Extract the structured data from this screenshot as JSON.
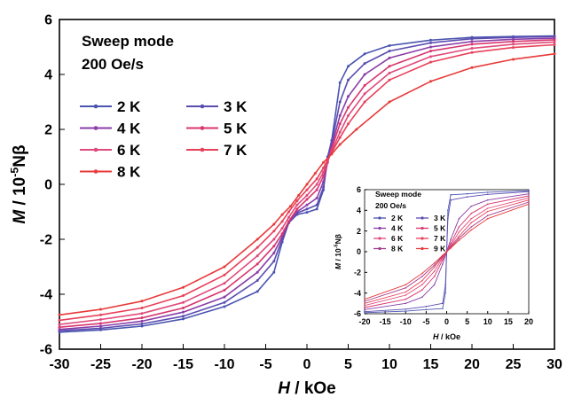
{
  "chart_data": [
    {
      "type": "line",
      "panel": "main",
      "annotation_line1": "Sweep mode",
      "annotation_line2": "200 Oe/s",
      "xlabel_var": "H",
      "xlabel_unit": " / kOe",
      "ylabel_var": "M",
      "ylabel_unit_pre": " / 10",
      "ylabel_exp": "-5",
      "ylabel_unit_post": "Nβ",
      "xlim": [
        -30,
        30
      ],
      "ylim": [
        -6,
        6
      ],
      "xticks": [
        "-30",
        "-25",
        "-20",
        "-15",
        "-10",
        "-5",
        "0",
        "5",
        "10",
        "15",
        "20",
        "25",
        "30"
      ],
      "yticks": [
        "-6",
        "-4",
        "-2",
        "0",
        "2",
        "4",
        "6"
      ],
      "grid": false,
      "legend_position": "upper-left",
      "series": [
        {
          "name": "2 K",
          "color": "#4a55b0",
          "points": [
            [
              -30,
              -5.38
            ],
            [
              -25,
              -5.3
            ],
            [
              -20,
              -5.16
            ],
            [
              -15,
              -4.9
            ],
            [
              -10,
              -4.45
            ],
            [
              -6,
              -3.9
            ],
            [
              -4,
              -3.2
            ],
            [
              -3,
              -2.1
            ],
            [
              -2.2,
              -1.4
            ],
            [
              -1.2,
              -1.1
            ],
            [
              0,
              -1.02
            ],
            [
              1.2,
              -0.9
            ],
            [
              2,
              -0.2
            ],
            [
              2.5,
              1.0
            ],
            [
              3,
              1.6
            ],
            [
              4,
              3.7
            ],
            [
              5,
              4.3
            ],
            [
              7,
              4.75
            ],
            [
              10,
              5.05
            ],
            [
              15,
              5.25
            ],
            [
              20,
              5.35
            ],
            [
              25,
              5.38
            ],
            [
              30,
              5.4
            ]
          ]
        },
        {
          "name": "3 K",
          "color": "#5a4db0",
          "points": [
            [
              -30,
              -5.33
            ],
            [
              -25,
              -5.24
            ],
            [
              -20,
              -5.08
            ],
            [
              -15,
              -4.8
            ],
            [
              -10,
              -4.3
            ],
            [
              -6,
              -3.5
            ],
            [
              -4,
              -2.8
            ],
            [
              -3,
              -2.0
            ],
            [
              -2.2,
              -1.4
            ],
            [
              -1.2,
              -1.05
            ],
            [
              0,
              -0.9
            ],
            [
              1.2,
              -0.75
            ],
            [
              2,
              -0.1
            ],
            [
              2.5,
              0.9
            ],
            [
              3,
              1.5
            ],
            [
              4,
              3.0
            ],
            [
              5,
              3.8
            ],
            [
              7,
              4.4
            ],
            [
              10,
              4.85
            ],
            [
              15,
              5.15
            ],
            [
              20,
              5.3
            ],
            [
              25,
              5.35
            ],
            [
              30,
              5.38
            ]
          ]
        },
        {
          "name": "4 K",
          "color": "#8a3ca8",
          "points": [
            [
              -30,
              -5.28
            ],
            [
              -25,
              -5.16
            ],
            [
              -20,
              -4.98
            ],
            [
              -15,
              -4.65
            ],
            [
              -10,
              -4.1
            ],
            [
              -6,
              -3.2
            ],
            [
              -4,
              -2.5
            ],
            [
              -3,
              -1.9
            ],
            [
              -2.2,
              -1.4
            ],
            [
              -1.2,
              -1.0
            ],
            [
              0,
              -0.75
            ],
            [
              1.2,
              -0.5
            ],
            [
              2,
              0.1
            ],
            [
              2.5,
              0.8
            ],
            [
              3,
              1.4
            ],
            [
              4,
              2.5
            ],
            [
              5,
              3.2
            ],
            [
              7,
              4.0
            ],
            [
              10,
              4.6
            ],
            [
              15,
              5.0
            ],
            [
              20,
              5.2
            ],
            [
              25,
              5.28
            ],
            [
              30,
              5.32
            ]
          ]
        },
        {
          "name": "5 K",
          "color": "#d8356e",
          "points": [
            [
              -30,
              -5.2
            ],
            [
              -25,
              -5.06
            ],
            [
              -20,
              -4.86
            ],
            [
              -15,
              -4.5
            ],
            [
              -10,
              -3.85
            ],
            [
              -6,
              -2.9
            ],
            [
              -4,
              -2.25
            ],
            [
              -3,
              -1.8
            ],
            [
              -2.2,
              -1.35
            ],
            [
              -1.2,
              -0.9
            ],
            [
              0,
              -0.55
            ],
            [
              1.2,
              -0.2
            ],
            [
              2,
              0.3
            ],
            [
              2.5,
              0.8
            ],
            [
              3,
              1.3
            ],
            [
              4,
              2.2
            ],
            [
              5,
              2.8
            ],
            [
              7,
              3.6
            ],
            [
              10,
              4.3
            ],
            [
              15,
              4.85
            ],
            [
              20,
              5.1
            ],
            [
              25,
              5.2
            ],
            [
              30,
              5.26
            ]
          ]
        },
        {
          "name": "6 K",
          "color": "#e04a7a",
          "points": [
            [
              -30,
              -5.1
            ],
            [
              -25,
              -4.92
            ],
            [
              -20,
              -4.7
            ],
            [
              -15,
              -4.3
            ],
            [
              -10,
              -3.6
            ],
            [
              -6,
              -2.6
            ],
            [
              -4,
              -2.0
            ],
            [
              -3,
              -1.6
            ],
            [
              -2.2,
              -1.2
            ],
            [
              -1.2,
              -0.75
            ],
            [
              0,
              -0.4
            ],
            [
              1.2,
              0.0
            ],
            [
              2,
              0.45
            ],
            [
              2.5,
              0.85
            ],
            [
              3,
              1.2
            ],
            [
              4,
              1.9
            ],
            [
              5,
              2.5
            ],
            [
              7,
              3.3
            ],
            [
              10,
              4.05
            ],
            [
              15,
              4.65
            ],
            [
              20,
              4.95
            ],
            [
              25,
              5.1
            ],
            [
              30,
              5.18
            ]
          ]
        },
        {
          "name": "7 K",
          "color": "#e8405a",
          "points": [
            [
              -30,
              -4.95
            ],
            [
              -25,
              -4.75
            ],
            [
              -20,
              -4.5
            ],
            [
              -15,
              -4.05
            ],
            [
              -10,
              -3.3
            ],
            [
              -6,
              -2.3
            ],
            [
              -4,
              -1.7
            ],
            [
              -3,
              -1.35
            ],
            [
              -2.2,
              -1.0
            ],
            [
              -1.2,
              -0.6
            ],
            [
              0,
              -0.2
            ],
            [
              1.2,
              0.2
            ],
            [
              2,
              0.6
            ],
            [
              2.5,
              0.9
            ],
            [
              3,
              1.15
            ],
            [
              4,
              1.7
            ],
            [
              5,
              2.2
            ],
            [
              7,
              3.0
            ],
            [
              10,
              3.8
            ],
            [
              15,
              4.45
            ],
            [
              20,
              4.8
            ],
            [
              25,
              4.98
            ],
            [
              30,
              5.08
            ]
          ]
        },
        {
          "name": "8 K",
          "color": "#e83a3a",
          "points": [
            [
              -30,
              -4.75
            ],
            [
              -25,
              -4.55
            ],
            [
              -20,
              -4.25
            ],
            [
              -15,
              -3.75
            ],
            [
              -10,
              -3.0
            ],
            [
              -6,
              -2.0
            ],
            [
              -4,
              -1.45
            ],
            [
              -3,
              -1.1
            ],
            [
              -2,
              -0.8
            ],
            [
              -1,
              -0.4
            ],
            [
              0,
              0.0
            ],
            [
              1,
              0.4
            ],
            [
              2,
              0.8
            ],
            [
              3,
              1.1
            ],
            [
              4,
              1.45
            ],
            [
              6,
              2.0
            ],
            [
              10,
              3.0
            ],
            [
              15,
              3.75
            ],
            [
              20,
              4.25
            ],
            [
              25,
              4.55
            ],
            [
              30,
              4.75
            ]
          ]
        }
      ]
    },
    {
      "type": "line",
      "panel": "inset",
      "annotation_line1": "Sweep mode",
      "annotation_line2": "200 Oe/s",
      "xlabel_var": "H",
      "xlabel_unit": " / kOe",
      "ylabel_var": "M",
      "ylabel_unit_pre": " / 10",
      "ylabel_exp": "-5",
      "ylabel_unit_post": "Nβ",
      "xlim": [
        -20,
        20
      ],
      "ylim": [
        -6,
        6
      ],
      "xticks": [
        "-20",
        "-15",
        "-10",
        "-5",
        "0",
        "5",
        "10",
        "15",
        "20"
      ],
      "yticks": [
        "-6",
        "-4",
        "-2",
        "0",
        "2",
        "4",
        "6"
      ],
      "grid": false,
      "legend_position": "upper-left",
      "series": [
        {
          "name": "2 K",
          "color": "#4a55b0",
          "points": [
            [
              -20,
              -5.9
            ],
            [
              -10,
              -5.75
            ],
            [
              -5,
              -5.6
            ],
            [
              -1,
              -5.5
            ],
            [
              -0.3,
              -4.0
            ],
            [
              0,
              0.0
            ],
            [
              0.3,
              4.0
            ],
            [
              1,
              5.5
            ],
            [
              5,
              5.6
            ],
            [
              10,
              5.75
            ],
            [
              20,
              5.9
            ]
          ]
        },
        {
          "name": "3 K",
          "color": "#5a4db0",
          "points": [
            [
              -20,
              -5.8
            ],
            [
              -10,
              -5.55
            ],
            [
              -5,
              -5.3
            ],
            [
              -1,
              -5.0
            ],
            [
              -0.3,
              -3.2
            ],
            [
              0,
              0.0
            ],
            [
              0.3,
              3.2
            ],
            [
              1,
              5.0
            ],
            [
              5,
              5.3
            ],
            [
              10,
              5.55
            ],
            [
              20,
              5.8
            ]
          ]
        },
        {
          "name": "4 K",
          "color": "#8a3ca8",
          "points": [
            [
              -20,
              -5.6
            ],
            [
              -10,
              -5.0
            ],
            [
              -6,
              -4.4
            ],
            [
              -3,
              -3.2
            ],
            [
              -1,
              -1.2
            ],
            [
              0,
              0.0
            ],
            [
              1,
              1.2
            ],
            [
              3,
              3.2
            ],
            [
              6,
              4.4
            ],
            [
              10,
              5.0
            ],
            [
              20,
              5.6
            ]
          ]
        },
        {
          "name": "5 K",
          "color": "#d8356e",
          "points": [
            [
              -20,
              -5.4
            ],
            [
              -10,
              -4.6
            ],
            [
              -6,
              -3.7
            ],
            [
              -3,
              -2.4
            ],
            [
              -1,
              -0.8
            ],
            [
              0,
              0.0
            ],
            [
              1,
              0.8
            ],
            [
              3,
              2.4
            ],
            [
              6,
              3.7
            ],
            [
              10,
              4.6
            ],
            [
              20,
              5.4
            ]
          ]
        },
        {
          "name": "6 K",
          "color": "#e04a7a",
          "points": [
            [
              -20,
              -5.2
            ],
            [
              -10,
              -4.2
            ],
            [
              -6,
              -3.2
            ],
            [
              -3,
              -1.9
            ],
            [
              -1,
              -0.6
            ],
            [
              0,
              0.0
            ],
            [
              1,
              0.6
            ],
            [
              3,
              1.9
            ],
            [
              6,
              3.2
            ],
            [
              10,
              4.2
            ],
            [
              20,
              5.2
            ]
          ]
        },
        {
          "name": "7 K",
          "color": "#e8405a",
          "points": [
            [
              -20,
              -5.0
            ],
            [
              -10,
              -3.9
            ],
            [
              -6,
              -2.8
            ],
            [
              -3,
              -1.5
            ],
            [
              -1,
              -0.5
            ],
            [
              0,
              0.0
            ],
            [
              1,
              0.5
            ],
            [
              3,
              1.5
            ],
            [
              6,
              2.8
            ],
            [
              10,
              3.9
            ],
            [
              20,
              5.0
            ]
          ]
        },
        {
          "name": "8 K",
          "color": "#a23a8a",
          "points": [
            [
              -20,
              -4.8
            ],
            [
              -10,
              -3.5
            ],
            [
              -6,
              -2.4
            ],
            [
              -3,
              -1.3
            ],
            [
              -1,
              -0.4
            ],
            [
              0,
              0.0
            ],
            [
              1,
              0.4
            ],
            [
              3,
              1.3
            ],
            [
              6,
              2.4
            ],
            [
              10,
              3.5
            ],
            [
              20,
              4.8
            ]
          ]
        },
        {
          "name": "9 K",
          "color": "#e83a3a",
          "points": [
            [
              -20,
              -4.6
            ],
            [
              -10,
              -3.2
            ],
            [
              -6,
              -2.1
            ],
            [
              -3,
              -1.1
            ],
            [
              -1,
              -0.35
            ],
            [
              0,
              0.0
            ],
            [
              1,
              0.35
            ],
            [
              3,
              1.1
            ],
            [
              6,
              2.1
            ],
            [
              10,
              3.2
            ],
            [
              20,
              4.6
            ]
          ]
        }
      ]
    }
  ]
}
